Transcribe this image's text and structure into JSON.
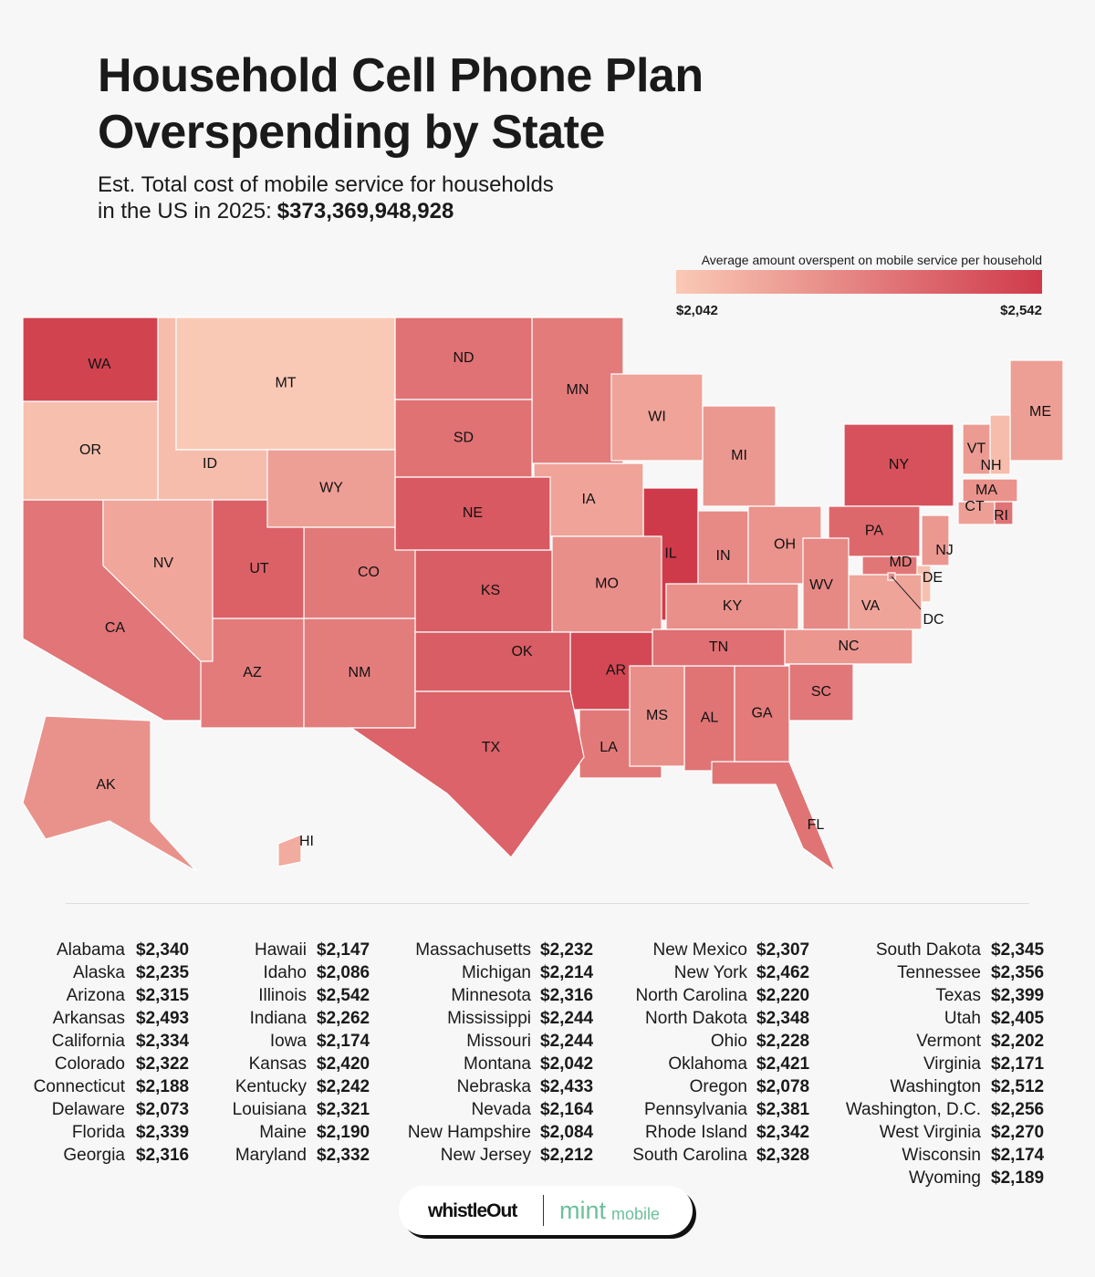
{
  "chart_data": {
    "type": "choropleth",
    "title": "Household Cell Phone Plan Overspending by State",
    "subtitle": [
      "Est. Total cost of mobile service for households",
      "in the US in 2025:"
    ],
    "subtitle_total": "$373,369,948,928",
    "legend": {
      "title": "Average amount overspent on mobile service per household",
      "clim": [
        2042,
        2542
      ],
      "ticks": [
        {
          "value": 2042,
          "label": "$2,042"
        },
        {
          "value": 2542,
          "label": "$2,542"
        }
      ],
      "colors": [
        "#fac9b5",
        "#cf3a4a"
      ]
    },
    "categories": [
      "Alabama",
      "Alaska",
      "Arizona",
      "Arkansas",
      "California",
      "Colorado",
      "Connecticut",
      "Delaware",
      "Florida",
      "Georgia",
      "Hawaii",
      "Idaho",
      "Illinois",
      "Indiana",
      "Iowa",
      "Kansas",
      "Kentucky",
      "Louisiana",
      "Maine",
      "Maryland",
      "Massachusetts",
      "Michigan",
      "Minnesota",
      "Mississippi",
      "Missouri",
      "Montana",
      "Nebraska",
      "Nevada",
      "New Hampshire",
      "New Jersey",
      "New Mexico",
      "New York",
      "North Carolina",
      "North Dakota",
      "Ohio",
      "Oklahoma",
      "Oregon",
      "Pennsylvania",
      "Rhode Island",
      "South Carolina",
      "South Dakota",
      "Tennessee",
      "Texas",
      "Utah",
      "Vermont",
      "Virginia",
      "Washington",
      "Washington, D.C.",
      "West Virginia",
      "Wisconsin",
      "Wyoming"
    ],
    "abbreviations": [
      "AL",
      "AK",
      "AZ",
      "AR",
      "CA",
      "CO",
      "CT",
      "DE",
      "FL",
      "GA",
      "HI",
      "ID",
      "IL",
      "IN",
      "IA",
      "KS",
      "KY",
      "LA",
      "ME",
      "MD",
      "MA",
      "MI",
      "MN",
      "MS",
      "MO",
      "MT",
      "NE",
      "NV",
      "NH",
      "NJ",
      "NM",
      "NY",
      "NC",
      "ND",
      "OH",
      "OK",
      "OR",
      "PA",
      "RI",
      "SC",
      "SD",
      "TN",
      "TX",
      "UT",
      "VT",
      "VA",
      "WA",
      "DC",
      "WV",
      "WI",
      "WY"
    ],
    "values": [
      2340,
      2235,
      2315,
      2493,
      2334,
      2322,
      2188,
      2073,
      2339,
      2316,
      2147,
      2086,
      2542,
      2262,
      2174,
      2420,
      2242,
      2321,
      2190,
      2332,
      2232,
      2214,
      2316,
      2244,
      2244,
      2042,
      2433,
      2164,
      2084,
      2212,
      2307,
      2462,
      2220,
      2348,
      2228,
      2421,
      2078,
      2381,
      2342,
      2328,
      2345,
      2356,
      2399,
      2405,
      2202,
      2171,
      2512,
      2256,
      2270,
      2174,
      2189
    ],
    "value_labels": [
      "$2,340",
      "$2,235",
      "$2,315",
      "$2,493",
      "$2,334",
      "$2,322",
      "$2,188",
      "$2,073",
      "$2,339",
      "$2,316",
      "$2,147",
      "$2,086",
      "$2,542",
      "$2,262",
      "$2,174",
      "$2,420",
      "$2,242",
      "$2,321",
      "$2,190",
      "$2,332",
      "$2,232",
      "$2,214",
      "$2,316",
      "$2,244",
      "$2,244",
      "$2,042",
      "$2,433",
      "$2,164",
      "$2,084",
      "$2,212",
      "$2,307",
      "$2,462",
      "$2,220",
      "$2,348",
      "$2,228",
      "$2,421",
      "$2,078",
      "$2,381",
      "$2,342",
      "$2,328",
      "$2,345",
      "$2,356",
      "$2,399",
      "$2,405",
      "$2,202",
      "$2,171",
      "$2,512",
      "$2,256",
      "$2,270",
      "$2,174",
      "$2,189"
    ],
    "logos": [
      "whistleOut",
      "mint",
      "mobile"
    ]
  }
}
